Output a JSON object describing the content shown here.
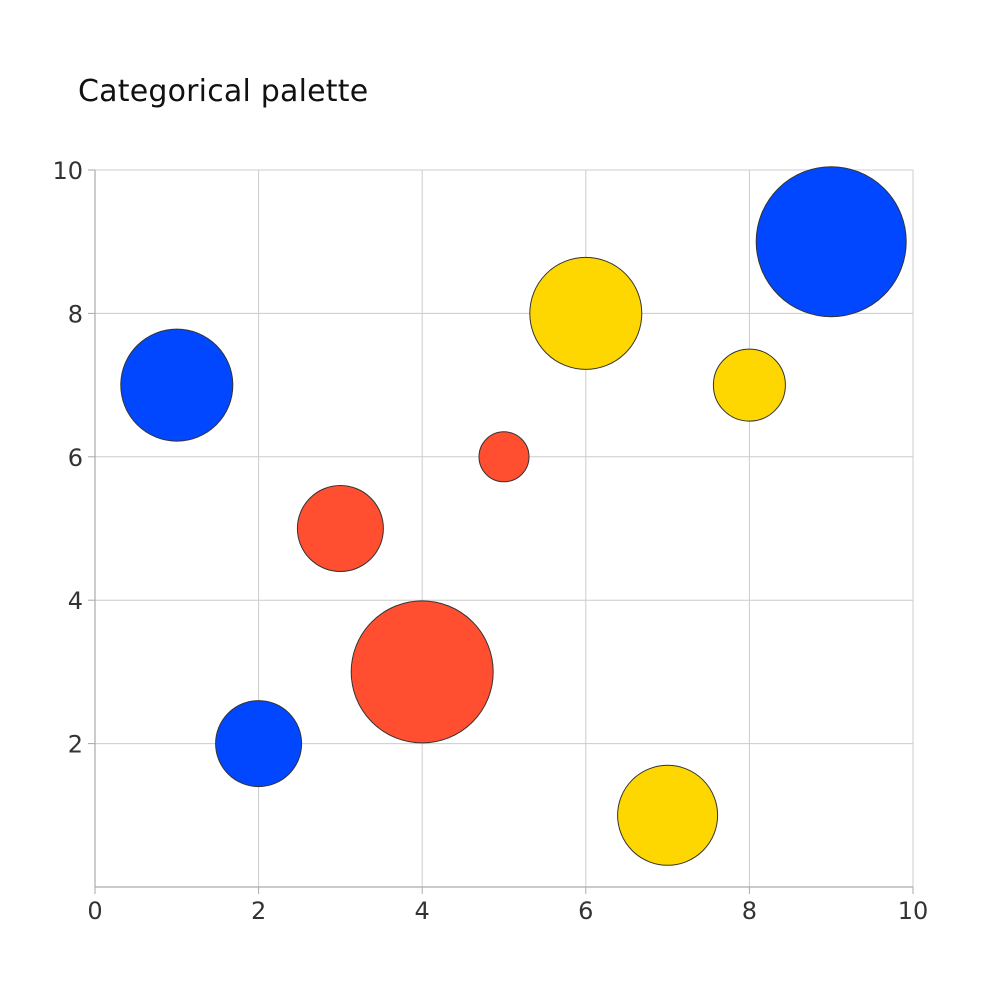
{
  "chart_data": {
    "type": "scatter",
    "subtype": "bubble",
    "title": "Categorical palette",
    "xlabel": "",
    "ylabel": "",
    "xlim": [
      0,
      10
    ],
    "ylim": [
      0,
      10
    ],
    "x_ticks": [
      0,
      2,
      4,
      6,
      8,
      10
    ],
    "y_ticks": [
      2,
      4,
      6,
      8,
      10
    ],
    "grid": true,
    "legend": null,
    "colors": {
      "blue": "#0047FF",
      "red": "#FF4F30",
      "yellow": "#FFD700",
      "edge": "#333333",
      "grid": "#cccccc"
    },
    "points": [
      {
        "x": 1,
        "y": 7,
        "radius_px": 56,
        "color": "#0047FF",
        "category": "blue"
      },
      {
        "x": 2,
        "y": 2,
        "radius_px": 43,
        "color": "#0047FF",
        "category": "blue"
      },
      {
        "x": 3,
        "y": 5,
        "radius_px": 43,
        "color": "#FF4F30",
        "category": "red"
      },
      {
        "x": 4,
        "y": 3,
        "radius_px": 71,
        "color": "#FF4F30",
        "category": "red"
      },
      {
        "x": 5,
        "y": 6,
        "radius_px": 25,
        "color": "#FF4F30",
        "category": "red"
      },
      {
        "x": 6,
        "y": 8,
        "radius_px": 56,
        "color": "#FFD700",
        "category": "yellow"
      },
      {
        "x": 7,
        "y": 1,
        "radius_px": 50,
        "color": "#FFD700",
        "category": "yellow"
      },
      {
        "x": 8,
        "y": 7,
        "radius_px": 36,
        "color": "#FFD700",
        "category": "yellow"
      },
      {
        "x": 9,
        "y": 9,
        "radius_px": 75,
        "color": "#0047FF",
        "category": "blue"
      }
    ]
  }
}
